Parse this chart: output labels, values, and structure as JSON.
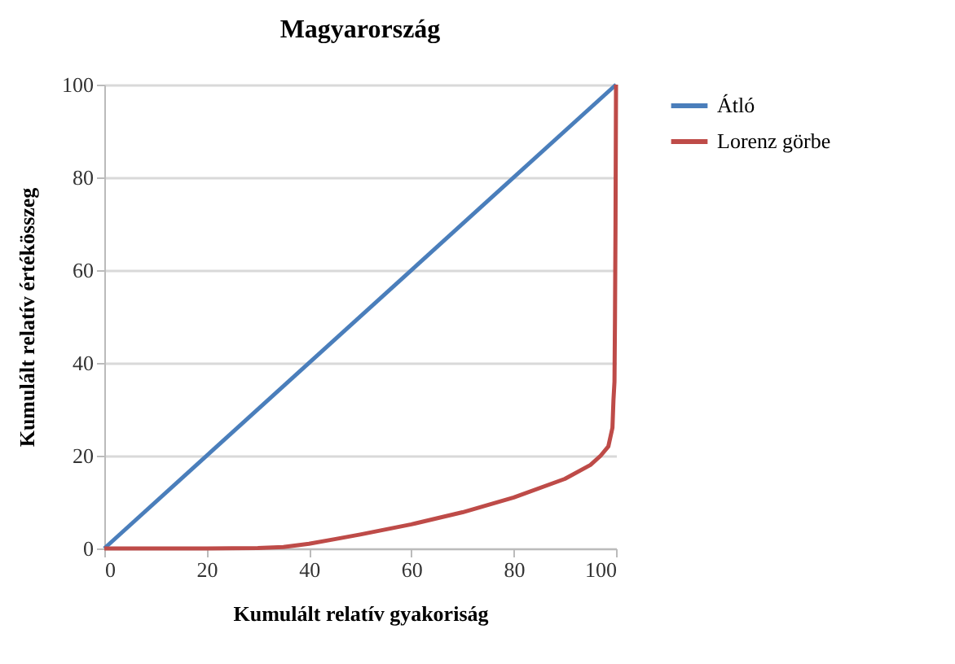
{
  "chart_data": {
    "type": "line",
    "title": "Magyarország",
    "xlabel": "Kumulált relatív gyakoriság",
    "ylabel": "Kumulált relatív értékösszeg",
    "xlim": [
      0,
      100
    ],
    "ylim": [
      0,
      100
    ],
    "xticks": [
      0,
      20,
      40,
      60,
      80,
      100
    ],
    "yticks": [
      0,
      20,
      40,
      60,
      80,
      100
    ],
    "grid": "y",
    "legend": "right",
    "marker": "none",
    "line_style": "solid",
    "series": [
      {
        "name": "Átló",
        "color": "#4a7ebb",
        "x": [
          0,
          100
        ],
        "values": [
          0,
          100
        ]
      },
      {
        "name": "Lorenz görbe",
        "color": "#be4b48",
        "x": [
          0,
          20,
          30,
          35,
          40,
          45,
          50,
          60,
          70,
          80,
          90,
          95,
          97,
          98.5,
          99.3,
          99.5,
          99.7,
          99.8,
          99.9,
          100
        ],
        "values": [
          0,
          0,
          0.1,
          0.3,
          1,
          2,
          3,
          5.2,
          7.8,
          11,
          15,
          18,
          20,
          22,
          26,
          32,
          36,
          50,
          70,
          100
        ]
      }
    ]
  }
}
